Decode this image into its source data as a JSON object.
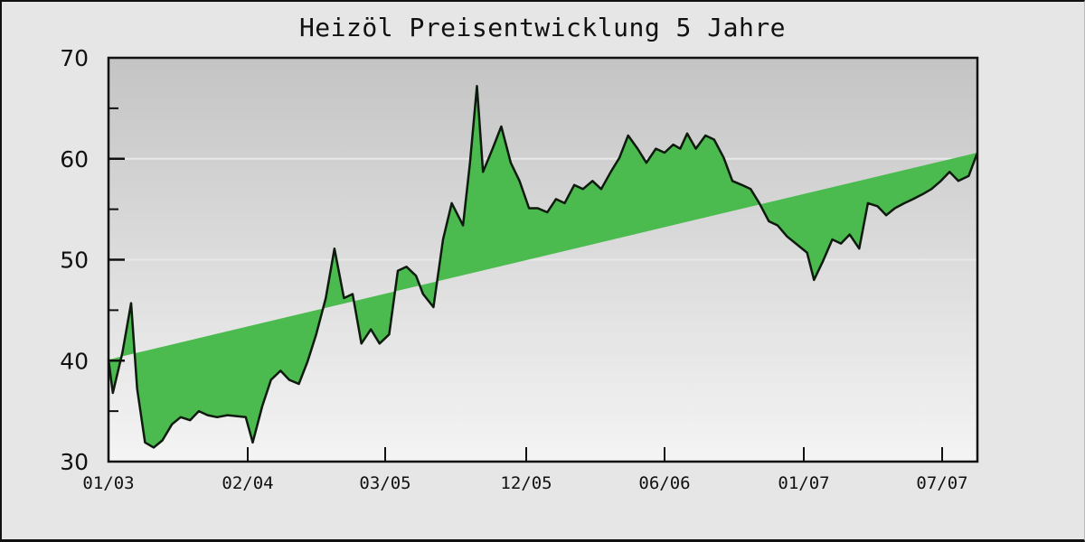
{
  "chart_data": {
    "type": "area",
    "title": "Heizöl Preisentwicklung 5 Jahre",
    "xlabel": "",
    "ylabel": "",
    "ylim": [
      30,
      70
    ],
    "yticks": [
      30,
      40,
      50,
      60,
      70
    ],
    "yticks_minor": [
      35,
      45,
      55,
      65
    ],
    "xtick_labels": [
      "01/03",
      "02/04",
      "03/05",
      "12/05",
      "06/06",
      "01/07",
      "07/07"
    ],
    "grid": "horizontal at major y ticks",
    "legend": "none",
    "colors": {
      "fill": "#4cbb4f",
      "line": "#0d1a0d",
      "plot_bg_top": "#c4c4c4",
      "plot_bg_bottom": "#f4f4f4",
      "page_bg": "#e6e6e6"
    },
    "series": [
      {
        "name": "Heizöl Preis",
        "x_frac": [
          0.0,
          0.005,
          0.016,
          0.026,
          0.033,
          0.042,
          0.052,
          0.062,
          0.073,
          0.083,
          0.094,
          0.104,
          0.114,
          0.125,
          0.137,
          0.158,
          0.166,
          0.177,
          0.187,
          0.198,
          0.208,
          0.219,
          0.229,
          0.239,
          0.25,
          0.26,
          0.271,
          0.281,
          0.291,
          0.302,
          0.312,
          0.323,
          0.333,
          0.343,
          0.354,
          0.362,
          0.374,
          0.385,
          0.395,
          0.408,
          0.416,
          0.424,
          0.431,
          0.442,
          0.452,
          0.463,
          0.473,
          0.484,
          0.494,
          0.505,
          0.515,
          0.525,
          0.536,
          0.546,
          0.557,
          0.567,
          0.578,
          0.588,
          0.598,
          0.609,
          0.619,
          0.63,
          0.64,
          0.65,
          0.658,
          0.666,
          0.676,
          0.687,
          0.697,
          0.708,
          0.718,
          0.729,
          0.739,
          0.749,
          0.76,
          0.77,
          0.781,
          0.791,
          0.804,
          0.812,
          0.822,
          0.833,
          0.843,
          0.853,
          0.864,
          0.874,
          0.885,
          0.895,
          0.905,
          0.916,
          0.926,
          0.937,
          0.947,
          0.958,
          0.968,
          0.978,
          0.99,
          1.0
        ],
        "values": [
          40.1,
          36.8,
          40.8,
          45.7,
          37.2,
          31.9,
          31.4,
          32.1,
          33.7,
          34.4,
          34.1,
          35.0,
          34.6,
          34.4,
          34.6,
          34.4,
          31.9,
          35.5,
          38.1,
          39.0,
          38.1,
          37.7,
          39.9,
          42.6,
          46.2,
          51.1,
          46.2,
          46.6,
          41.7,
          43.1,
          41.7,
          42.6,
          48.9,
          49.3,
          48.4,
          46.6,
          45.3,
          52.0,
          55.6,
          53.4,
          59.6,
          67.2,
          58.7,
          61.0,
          63.2,
          59.6,
          57.8,
          55.1,
          55.1,
          54.7,
          56.0,
          55.6,
          57.4,
          57.0,
          57.8,
          57.0,
          58.7,
          60.1,
          62.3,
          61.0,
          59.6,
          61.0,
          60.6,
          61.4,
          61.0,
          62.5,
          61.0,
          62.3,
          61.9,
          60.1,
          57.8,
          57.4,
          57.0,
          55.6,
          53.8,
          53.4,
          52.3,
          51.6,
          50.7,
          48.0,
          49.8,
          52.0,
          51.6,
          52.5,
          51.1,
          55.6,
          55.3,
          54.4,
          55.1,
          55.6,
          56.0,
          56.5,
          57.0,
          57.8,
          58.7,
          57.8,
          58.3,
          60.6,
          62.3
        ]
      }
    ]
  }
}
